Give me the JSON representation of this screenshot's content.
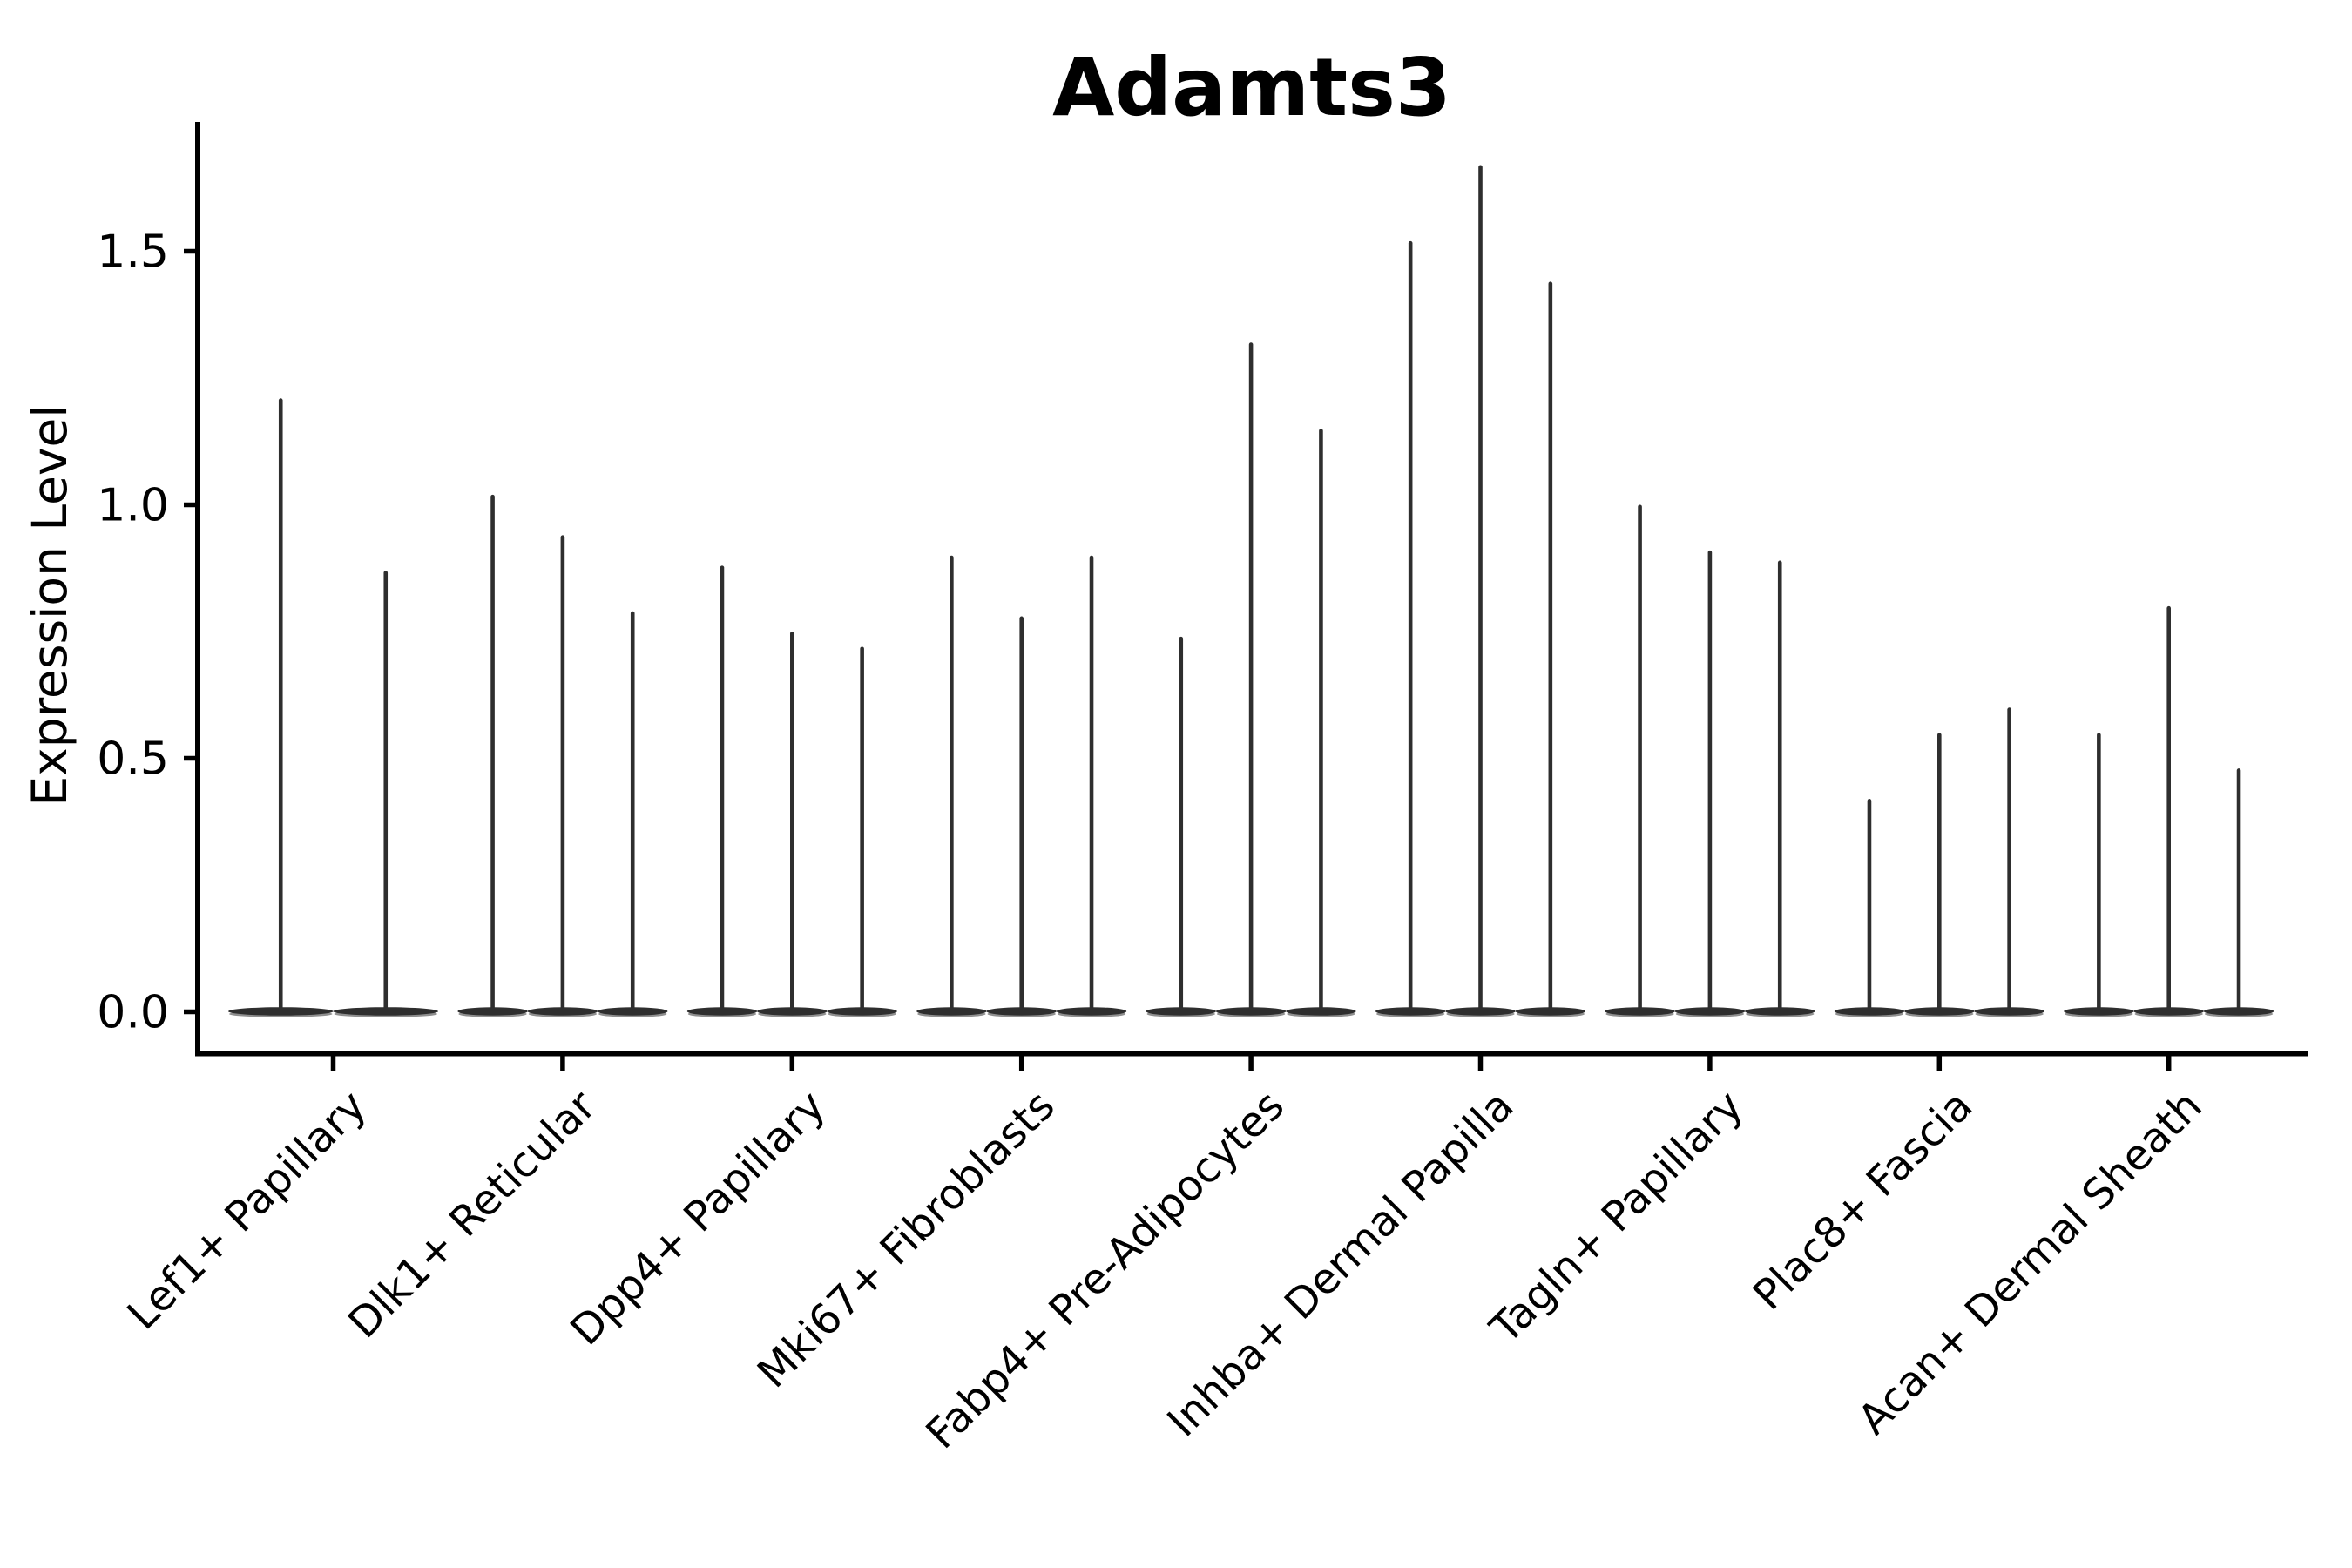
{
  "chart_data": {
    "type": "violin",
    "title": "Adamts3",
    "ylabel": "Expression Level",
    "xlabel": "",
    "ylim": [
      -0.08,
      1.76
    ],
    "grid": false,
    "legend": null,
    "yticks": [
      {
        "label": "0.0",
        "value": 0.0
      },
      {
        "label": "0.5",
        "value": 0.5
      },
      {
        "label": "1.0",
        "value": 1.0
      },
      {
        "label": "1.5",
        "value": 1.5
      }
    ],
    "categories": [
      "Lef1+ Papillary",
      "Dlk1+ Reticular",
      "Dpp4+ Papillary",
      "Mki67+ Fibroblasts",
      "Fabp4+ Pre-Adipocytes",
      "Inhba+ Dermal Papilla",
      "Tagln+ Papillary",
      "Plac8+ Fascia",
      "Acan+ Dermal Sheath"
    ],
    "series": [
      {
        "category": "Lef1+ Papillary",
        "violin_max_values": [
          1.21,
          0.87
        ]
      },
      {
        "category": "Dlk1+ Reticular",
        "violin_max_values": [
          1.02,
          0.94,
          0.79
        ]
      },
      {
        "category": "Dpp4+ Papillary",
        "violin_max_values": [
          0.88,
          0.75,
          0.72
        ]
      },
      {
        "category": "Mki67+ Fibroblasts",
        "violin_max_values": [
          0.9,
          0.78,
          0.9
        ]
      },
      {
        "category": "Fabp4+ Pre-Adipocytes",
        "violin_max_values": [
          0.74,
          1.32,
          1.15
        ]
      },
      {
        "category": "Inhba+ Dermal Papilla",
        "violin_max_values": [
          1.52,
          1.67,
          1.44
        ]
      },
      {
        "category": "Tagln+ Papillary",
        "violin_max_values": [
          1.0,
          0.91,
          0.89
        ]
      },
      {
        "category": "Plac8+ Fascia",
        "violin_max_values": [
          0.42,
          0.55,
          0.6
        ]
      },
      {
        "category": "Acan+ Dermal Sheath",
        "violin_max_values": [
          0.55,
          0.8,
          0.48
        ]
      }
    ],
    "colors": {
      "violin_line": "#2e2e2e",
      "violin_base_edge": "#8f8f8f",
      "axis": "#000000",
      "text": "#000000",
      "background": "#ffffff"
    }
  }
}
